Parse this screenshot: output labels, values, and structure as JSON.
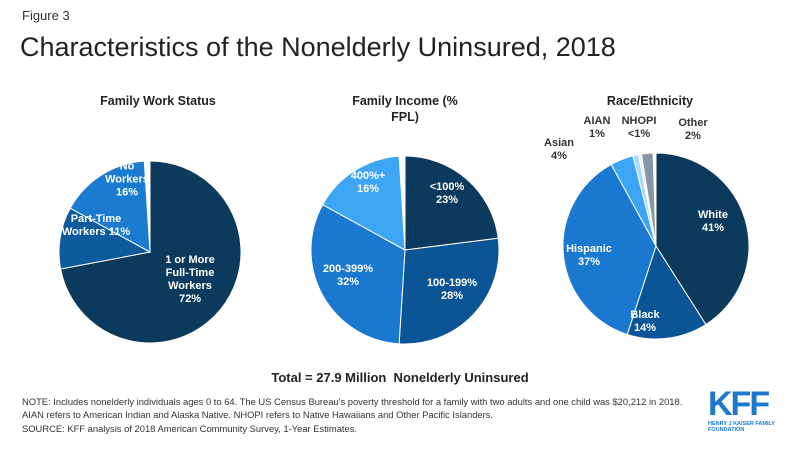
{
  "figure_label": "Figure 3",
  "title": "Characteristics of the Nonelderly Uninsured, 2018",
  "chart_data": [
    {
      "type": "pie",
      "title": "Family Work Status",
      "categories": [
        "1 or More Full-Time Workers",
        "Part-Time Workers",
        "No Workers"
      ],
      "values": [
        72,
        11,
        16
      ],
      "value_labels": [
        "72%",
        "11%",
        "16%"
      ],
      "colors": [
        "#0c3a5d",
        "#0d5a9c",
        "#1a7bd0"
      ]
    },
    {
      "type": "pie",
      "title": "Family Income (% FPL)",
      "categories": [
        "<100%",
        "100-199%",
        "200-399%",
        "400%+"
      ],
      "values": [
        23,
        28,
        32,
        16
      ],
      "value_labels": [
        "23%",
        "28%",
        "32%",
        "16%"
      ],
      "colors": [
        "#0c3a5d",
        "#0b5597",
        "#1a78d0",
        "#3ca6f4"
      ]
    },
    {
      "type": "pie",
      "title": "Race/Ethnicity",
      "categories": [
        "White",
        "Black",
        "Hispanic",
        "Asian",
        "AIAN",
        "NHOPI",
        "Other"
      ],
      "values": [
        41,
        14,
        37,
        4,
        1,
        0.5,
        2
      ],
      "value_labels": [
        "41%",
        "14%",
        "37%",
        "4%",
        "1%",
        "<1%",
        "2%"
      ],
      "colors": [
        "#0c3a5d",
        "#0b5597",
        "#1a78d0",
        "#3ca6f4",
        "#a9daf7",
        "#e1f1fc",
        "#8796a4"
      ]
    }
  ],
  "total": "Total = 27.9 Million  Nonelderly Uninsured",
  "notes": [
    "NOTE: Includes nonelderly individuals ages 0 to 64. The US Census Bureau's poverty threshold for a family with two adults and one child was $20,212 in 2018.",
    "AIAN  refers to American Indian and Alaska Native. NHOPI refers to Native Hawaiians and Other Pacific Islanders."
  ],
  "source": "SOURCE: KFF analysis of 2018 American Community Survey, 1-Year Estimates.",
  "logo": {
    "name": "KFF",
    "subtitle": "HENRY J KAISER FAMILY FOUNDATION"
  }
}
